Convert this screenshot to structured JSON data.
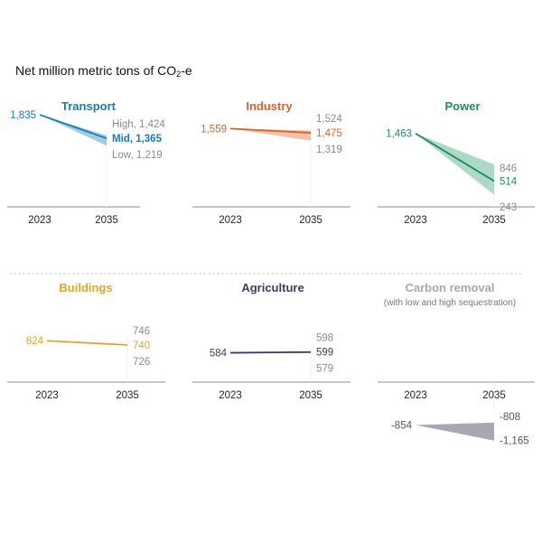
{
  "title_prefix": "Net million metric tons of CO",
  "title_sub": "2",
  "title_suffix": "-e",
  "chart_data": {
    "type": "line",
    "title": "Net million metric tons of CO2-e",
    "x": [
      "2023",
      "2035"
    ],
    "panels": [
      {
        "name": "Transport",
        "color": "#1a7ab5",
        "band": "#8fc3e0",
        "start": 1835,
        "mid": 1365,
        "high": 1424,
        "low": 1219,
        "start_label": "1,835",
        "high_label": "High, 1,424",
        "mid_label": "Mid, 1,365",
        "low_label": "Low, 1,219"
      },
      {
        "name": "Industry",
        "color": "#d9622b",
        "band": "#f0b69a",
        "start": 1559,
        "mid": 1475,
        "high": 1524,
        "low": 1319,
        "start_label": "1,559",
        "high_label": "1,524",
        "mid_label": "1,475",
        "low_label": "1,319"
      },
      {
        "name": "Power",
        "color": "#1f8a5e",
        "band": "#9ed3bc",
        "start": 1463,
        "mid": 514,
        "high": 846,
        "low": 243,
        "start_label": "1,463",
        "high_label": "846",
        "mid_label": "514",
        "low_label": "243"
      },
      {
        "name": "Buildings",
        "color": "#e0a52f",
        "band": "#f1d79c",
        "start": 824,
        "mid": 740,
        "high": 746,
        "low": 726,
        "start_label": "824",
        "high_label": "746",
        "mid_label": "740",
        "low_label": "726"
      },
      {
        "name": "Agriculture",
        "color": "#3d3b63",
        "band": "#b4b3c8",
        "start": 584,
        "mid": 599,
        "high": 598,
        "low": 579,
        "start_label": "584",
        "high_label": "598",
        "mid_label": "599",
        "low_label": "579"
      },
      {
        "name": "Carbon removal",
        "subtitle": "(with low and high sequestration)",
        "color": "#a8a8b4",
        "band": "#a8a8b4",
        "start": -854,
        "high": -808,
        "low": -1165,
        "start_label": "-854",
        "high_label": "-808",
        "low_label": "-1,165"
      }
    ],
    "label_gray": "#8a8a8a",
    "axis_color": "#c6c6c6"
  }
}
